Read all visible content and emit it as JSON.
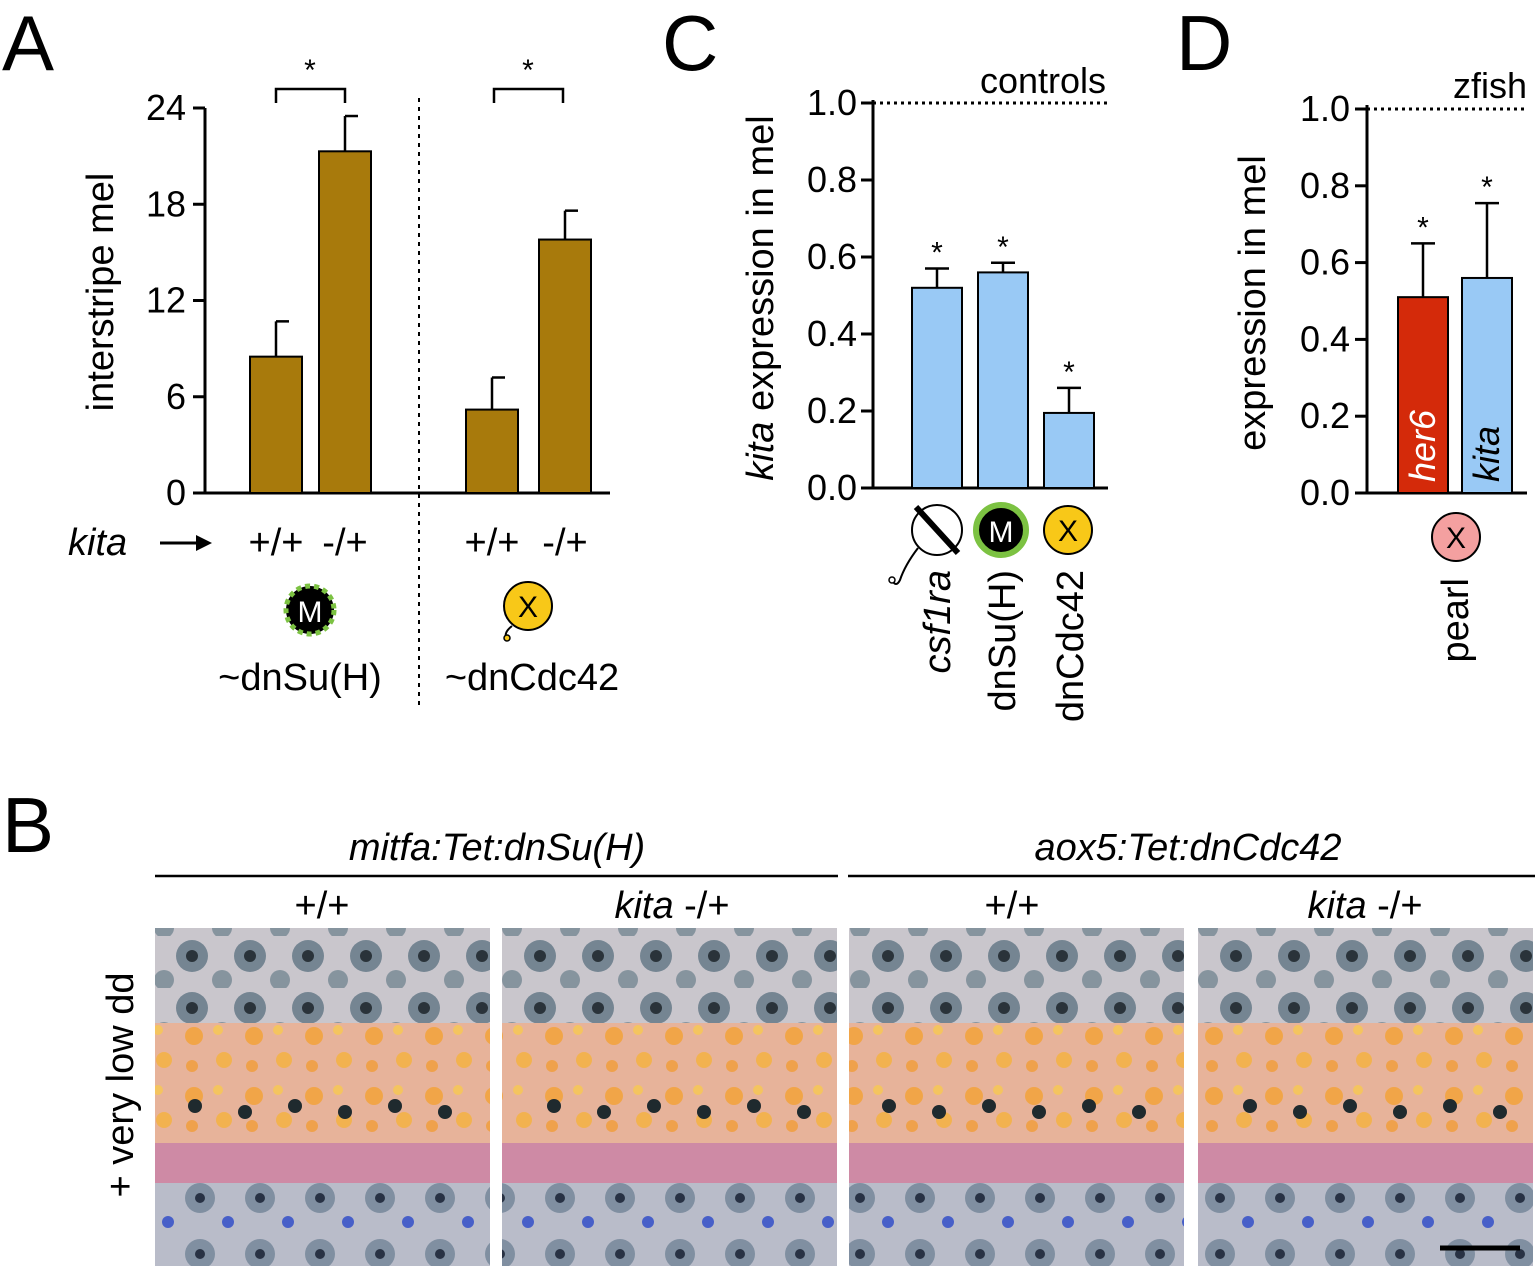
{
  "panels": {
    "A": "A",
    "B": "B",
    "C": "C",
    "D": "D"
  },
  "colors": {
    "bar_brown": "#a87a0c",
    "bar_blue": "#99c9f5",
    "bar_red": "#d42a0a",
    "marker_yellow": "#f8c818",
    "marker_pink": "#f4a0a0",
    "ring_green": "#7cc242"
  },
  "chart_data": [
    {
      "panel": "A",
      "type": "bar",
      "ylabel": "interstripe mel",
      "ylim": [
        0,
        24
      ],
      "yticks": [
        "0",
        "6",
        "12",
        "18",
        "24"
      ],
      "categories": [
        "+/+",
        "-/+",
        "+/+",
        "-/+"
      ],
      "values": [
        8.5,
        21.3,
        5.2,
        15.8
      ],
      "errors": [
        2.2,
        2.2,
        2.0,
        1.8
      ],
      "significance": [
        "*",
        "*"
      ],
      "row_label": "kita",
      "groups": [
        "~dnSu(H)",
        "~dnCdc42"
      ],
      "icons": [
        "M",
        "X"
      ]
    },
    {
      "panel": "C",
      "type": "bar",
      "ylabel_italic": "kita",
      "ylabel": "expression in mel",
      "ylim": [
        0,
        1.0
      ],
      "yticks": [
        "0.0",
        "0.2",
        "0.4",
        "0.6",
        "0.8",
        "1.0"
      ],
      "reference_label": "controls",
      "reference_value": 1.0,
      "categories": [
        "csf1ra",
        "dnSu(H)",
        "dnCdc42"
      ],
      "values": [
        0.52,
        0.56,
        0.195
      ],
      "errors": [
        0.05,
        0.025,
        0.065
      ],
      "significance": [
        "*",
        "*",
        "*"
      ],
      "icons": [
        "",
        "M",
        "X"
      ]
    },
    {
      "panel": "D",
      "type": "bar",
      "ylabel": "expression in mel",
      "ylim": [
        0,
        1.0
      ],
      "yticks": [
        "0.0",
        "0.2",
        "0.4",
        "0.6",
        "0.8",
        "1.0"
      ],
      "reference_label": "zfish",
      "reference_value": 1.0,
      "series": [
        {
          "name": "her6",
          "value": 0.51,
          "error": 0.14
        },
        {
          "name": "kita",
          "value": 0.56,
          "error": 0.195
        }
      ],
      "significance": [
        "*",
        "*"
      ],
      "icon": "X",
      "group": "pearl"
    }
  ],
  "panel_b": {
    "headers": [
      "mitfa:Tet:dnSu(H)",
      "aox5:Tet:dnCdc42"
    ],
    "columns": [
      {
        "italic": "",
        "text": "+/+"
      },
      {
        "italic": "kita",
        "text": " -/+"
      },
      {
        "italic": "",
        "text": "+/+"
      },
      {
        "italic": "kita",
        "text": " -/+"
      }
    ],
    "row_label": "+ very low dd"
  }
}
